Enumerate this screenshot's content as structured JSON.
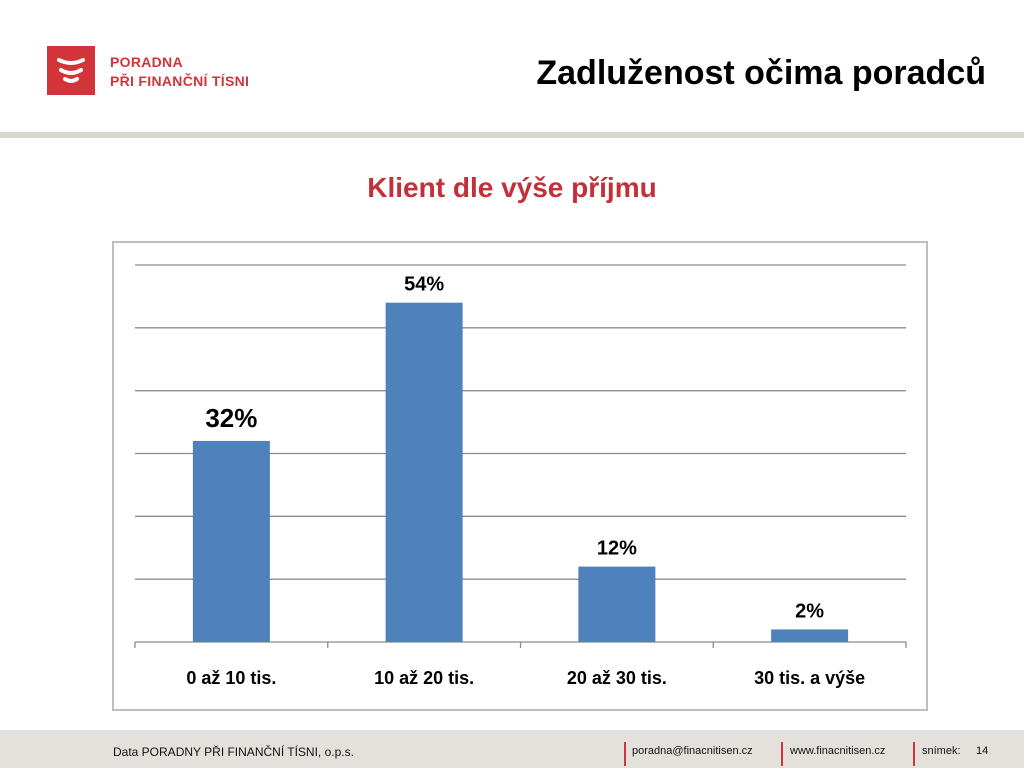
{
  "header": {
    "org_line1": "PORADNA",
    "org_line2": "PŘI FINANČNÍ TÍSNI",
    "title": "Zadluženost očima poradců",
    "brand_color": "#d3343a"
  },
  "chart_data": {
    "type": "bar",
    "title": "Klient dle výše příjmu",
    "categories": [
      "0 až 10 tis.",
      "10 až 20 tis.",
      "20 až 30 tis.",
      "30 tis. a výše"
    ],
    "values": [
      32,
      54,
      12,
      2
    ],
    "data_labels": [
      "32%",
      "54%",
      "12%",
      "2%"
    ],
    "ylim": [
      0,
      60
    ],
    "grid": true,
    "bar_color": "#4f81bd",
    "xlabel": "",
    "ylabel": ""
  },
  "footer": {
    "source": "Data PORADNY PŘI FINANČNÍ TÍSNI, o.p.s.",
    "email": "poradna@finacnitisen.cz",
    "web": "www.finacnitisen.cz",
    "slide_label": "snímek:",
    "slide_number": "14"
  }
}
